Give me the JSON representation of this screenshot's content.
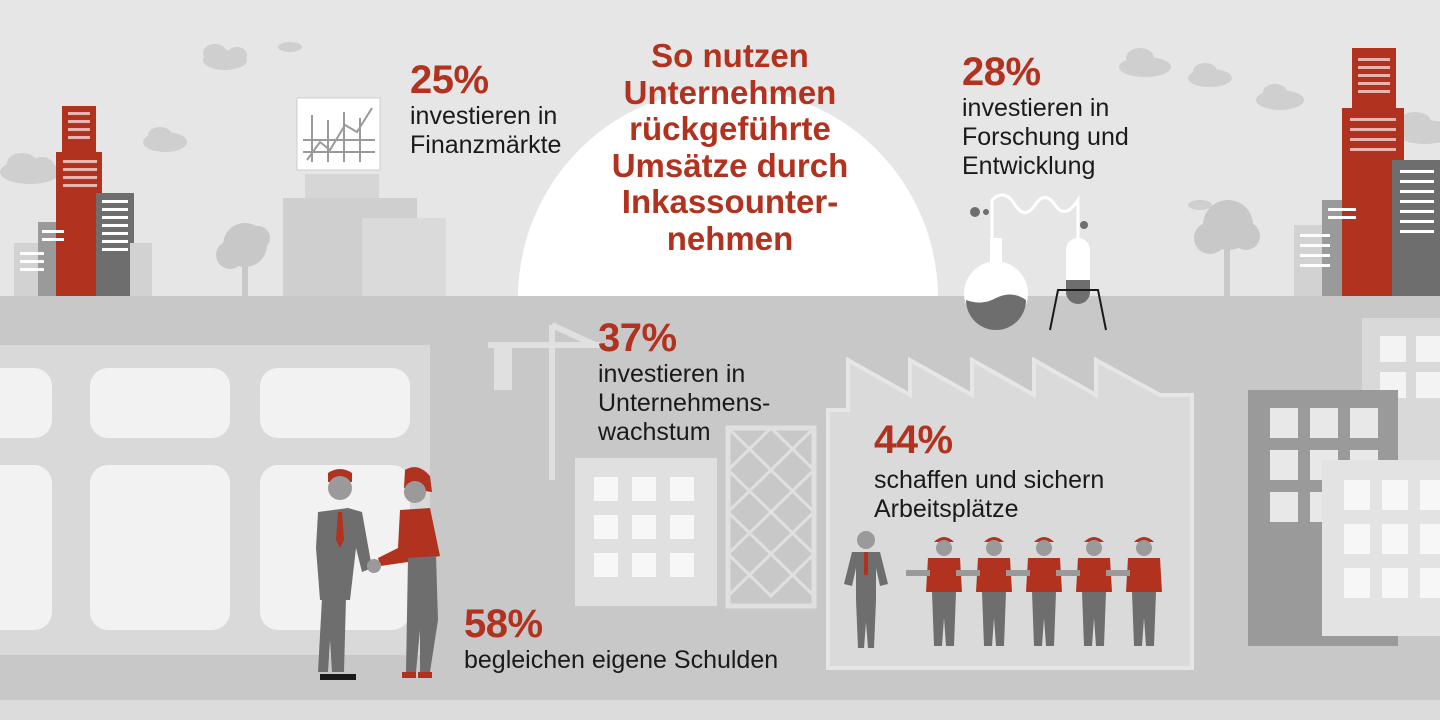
{
  "title": "So nutzen\nUnternehmen\nrückgeführte\nUmsätze durch\nInkassounter-\nnehmen",
  "stats": [
    {
      "id": "finance",
      "percent": "25%",
      "text": "investieren in\nFinanzmärkte"
    },
    {
      "id": "research",
      "percent": "28%",
      "text": "investieren in\nForschung und\nEntwicklung"
    },
    {
      "id": "growth",
      "percent": "37%",
      "text": "investieren in\nUnternehmens-\nwachstum"
    },
    {
      "id": "jobs",
      "percent": "44%",
      "text": "schaffen und sichern\nArbeitsplätze"
    },
    {
      "id": "debts",
      "percent": "58%",
      "text": "begleichen eigene Schulden"
    }
  ],
  "colors": {
    "accent": "#b0321f",
    "background": "#e6e6e6",
    "ground": "#c8c8c8",
    "dark_gray": "#6e6e6e",
    "mid_gray": "#9a9a9a",
    "light_gray": "#d2d2d2",
    "white": "#ffffff"
  },
  "icons": [
    "stock-chart-icon",
    "chemistry-flask-icon",
    "construction-crane-icon",
    "factory-icon",
    "handshake-icon",
    "business-team-icon",
    "city-skyline-icon",
    "cloud-icon",
    "tree-icon"
  ]
}
